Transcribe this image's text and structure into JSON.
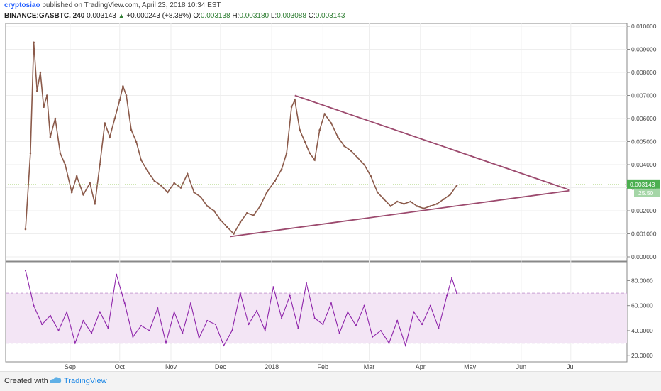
{
  "header": {
    "author": "cryptosiao",
    "published": "published on TradingView.com, April 23, 2018 10:34 EST",
    "symbol": "BINANCE:GASBTC, 240",
    "last": "0.003143",
    "change": "+0.000243 (+8.38%)",
    "open_label": "O:",
    "open": "0.003138",
    "high_label": "H:",
    "high": "0.003180",
    "low_label": "L:",
    "low": "0.003088",
    "close_label": "C:",
    "close": "0.003143"
  },
  "footer": {
    "created_with": "Created with",
    "brand": "TradingView"
  },
  "colors": {
    "candle": "#8b5a4a",
    "trendline": "#9c4a6e",
    "rsi": "#8e24aa",
    "rsi_band": "#f3e5f5",
    "price_tag": "#4caf50"
  },
  "chart_data": [
    {
      "type": "line",
      "ylim": [
        0,
        0.01
      ],
      "y_ticks": [
        "0.010000",
        "0.009000",
        "0.008000",
        "0.007000",
        "0.006000",
        "0.005000",
        "0.004000",
        "0.003000",
        "0.002000",
        "0.001000",
        "0.000000"
      ],
      "y_tick_values": [
        0.01,
        0.009,
        0.008,
        0.007,
        0.006,
        0.005,
        0.004,
        0.003,
        0.002,
        0.001,
        0.0
      ],
      "x_ticks": [
        "Sep",
        "Oct",
        "Nov",
        "Dec",
        "2018",
        "Feb",
        "Mar",
        "Apr",
        "May",
        "Jun",
        "Jul"
      ],
      "x_tick_values": [
        "2017-09-01",
        "2017-10-01",
        "2017-11-01",
        "2017-12-01",
        "2018-01-01",
        "2018-02-01",
        "2018-03-01",
        "2018-04-01",
        "2018-05-01",
        "2018-06-01",
        "2018-07-01"
      ],
      "last_price_label": "0.003143",
      "last_price": 0.003143,
      "volume_label": "25.50",
      "series": [
        {
          "x": [
            "2017-08-05",
            "2017-08-08",
            "2017-08-10",
            "2017-08-12",
            "2017-08-14",
            "2017-08-16",
            "2017-08-18",
            "2017-08-20",
            "2017-08-23",
            "2017-08-26",
            "2017-08-29",
            "2017-09-02",
            "2017-09-05",
            "2017-09-09",
            "2017-09-13",
            "2017-09-16",
            "2017-09-19",
            "2017-09-22",
            "2017-09-25",
            "2017-09-28",
            "2017-10-01",
            "2017-10-03",
            "2017-10-05",
            "2017-10-08",
            "2017-10-11",
            "2017-10-14",
            "2017-10-18",
            "2017-10-22",
            "2017-10-26",
            "2017-10-30",
            "2017-11-03",
            "2017-11-07",
            "2017-11-11",
            "2017-11-15",
            "2017-11-19",
            "2017-11-23",
            "2017-11-27",
            "2017-12-01",
            "2017-12-05",
            "2017-12-09",
            "2017-12-13",
            "2017-12-17",
            "2017-12-21",
            "2017-12-25",
            "2017-12-29",
            "2018-01-03",
            "2018-01-07",
            "2018-01-10",
            "2018-01-13",
            "2018-01-15",
            "2018-01-18",
            "2018-01-21",
            "2018-01-24",
            "2018-01-27",
            "2018-01-30",
            "2018-02-02",
            "2018-02-06",
            "2018-02-10",
            "2018-02-14",
            "2018-02-18",
            "2018-02-22",
            "2018-02-26",
            "2018-03-02",
            "2018-03-06",
            "2018-03-10",
            "2018-03-14",
            "2018-03-18",
            "2018-03-22",
            "2018-03-26",
            "2018-03-30",
            "2018-04-03",
            "2018-04-07",
            "2018-04-11",
            "2018-04-15",
            "2018-04-19",
            "2018-04-23"
          ],
          "y": [
            0.0012,
            0.0045,
            0.0093,
            0.0072,
            0.008,
            0.0065,
            0.007,
            0.0052,
            0.006,
            0.0045,
            0.004,
            0.0028,
            0.0035,
            0.0027,
            0.0032,
            0.0023,
            0.004,
            0.0058,
            0.0052,
            0.006,
            0.0068,
            0.0074,
            0.007,
            0.0055,
            0.005,
            0.0042,
            0.0037,
            0.0033,
            0.0031,
            0.0028,
            0.0032,
            0.003,
            0.0036,
            0.0028,
            0.0026,
            0.0022,
            0.002,
            0.0016,
            0.0013,
            0.001,
            0.0015,
            0.0019,
            0.0018,
            0.0022,
            0.0028,
            0.0033,
            0.0038,
            0.0045,
            0.0065,
            0.0068,
            0.0055,
            0.005,
            0.0045,
            0.0042,
            0.0055,
            0.0062,
            0.0058,
            0.0052,
            0.0048,
            0.0046,
            0.0043,
            0.004,
            0.0035,
            0.0028,
            0.0025,
            0.0022,
            0.0024,
            0.0023,
            0.0024,
            0.0022,
            0.0021,
            0.0022,
            0.0023,
            0.0025,
            0.0027,
            0.0031
          ]
        }
      ],
      "trendlines": [
        {
          "x": [
            "2018-01-15",
            "2018-06-30"
          ],
          "y": [
            0.007,
            0.00291
          ]
        },
        {
          "x": [
            "2017-12-07",
            "2018-06-30"
          ],
          "y": [
            0.00088,
            0.00287
          ]
        }
      ]
    },
    {
      "type": "line",
      "ylim": [
        15,
        95
      ],
      "y_ticks": [
        "80.0000",
        "60.0000",
        "40.0000",
        "20.0000"
      ],
      "y_tick_values": [
        80,
        60,
        40,
        20
      ],
      "band": [
        30,
        70
      ],
      "series": [
        {
          "x": [
            "2017-08-05",
            "2017-08-10",
            "2017-08-15",
            "2017-08-20",
            "2017-08-25",
            "2017-08-30",
            "2017-09-04",
            "2017-09-09",
            "2017-09-14",
            "2017-09-19",
            "2017-09-24",
            "2017-09-29",
            "2017-10-04",
            "2017-10-09",
            "2017-10-14",
            "2017-10-19",
            "2017-10-24",
            "2017-10-29",
            "2017-11-03",
            "2017-11-08",
            "2017-11-13",
            "2017-11-18",
            "2017-11-23",
            "2017-11-28",
            "2017-12-03",
            "2017-12-08",
            "2017-12-13",
            "2017-12-18",
            "2017-12-23",
            "2017-12-28",
            "2018-01-02",
            "2018-01-07",
            "2018-01-12",
            "2018-01-17",
            "2018-01-22",
            "2018-01-27",
            "2018-02-01",
            "2018-02-06",
            "2018-02-11",
            "2018-02-16",
            "2018-02-21",
            "2018-02-26",
            "2018-03-03",
            "2018-03-08",
            "2018-03-13",
            "2018-03-18",
            "2018-03-23",
            "2018-03-28",
            "2018-04-02",
            "2018-04-07",
            "2018-04-12",
            "2018-04-17",
            "2018-04-20",
            "2018-04-23"
          ],
          "y": [
            88,
            60,
            45,
            52,
            40,
            55,
            30,
            48,
            38,
            55,
            42,
            85,
            62,
            35,
            44,
            40,
            58,
            30,
            55,
            38,
            62,
            34,
            48,
            45,
            28,
            40,
            70,
            45,
            56,
            40,
            75,
            50,
            68,
            42,
            78,
            50,
            45,
            62,
            38,
            55,
            44,
            60,
            35,
            40,
            30,
            48,
            28,
            55,
            45,
            60,
            42,
            68,
            82,
            70
          ]
        }
      ]
    }
  ]
}
